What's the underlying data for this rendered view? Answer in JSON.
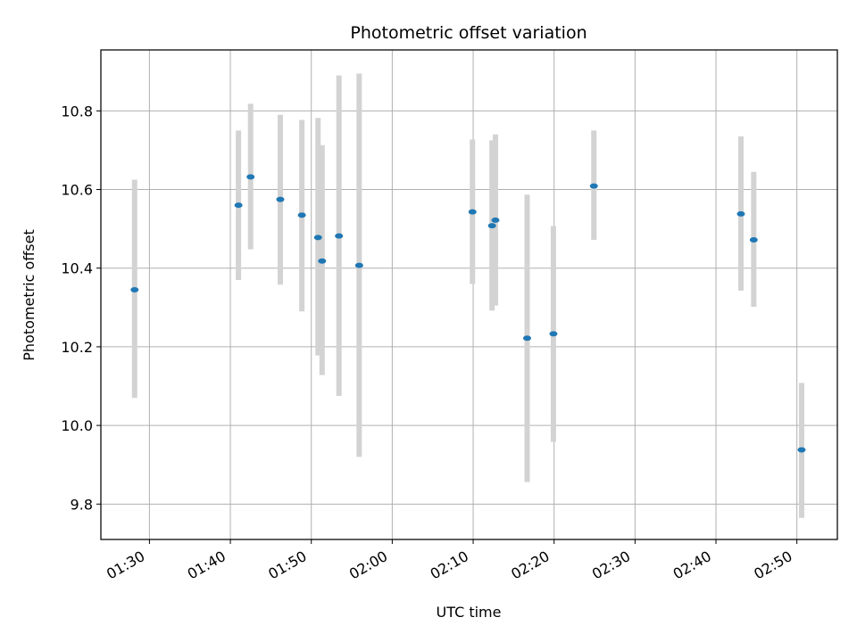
{
  "chart_data": {
    "type": "scatter",
    "title": "Photometric offset variation",
    "xlabel": "UTC time",
    "ylabel": "Photometric offset",
    "xlim": [
      "01:24",
      "02:55"
    ],
    "ylim": [
      9.71,
      10.955
    ],
    "grid": true,
    "x_ticks": [
      "01:30",
      "01:40",
      "01:50",
      "02:00",
      "02:10",
      "02:20",
      "02:30",
      "02:40",
      "02:50"
    ],
    "y_ticks": [
      "9.8",
      "10.0",
      "10.2",
      "10.4",
      "10.6",
      "10.8"
    ],
    "colors": {
      "point": "#1f77b4",
      "errorbar": "#d3d3d3",
      "grid": "#b0b0b0"
    },
    "series": [
      {
        "points": [
          {
            "t": "01:28:10",
            "y": 10.345,
            "lo": 10.07,
            "hi": 10.625
          },
          {
            "t": "01:41:00",
            "y": 10.56,
            "lo": 10.37,
            "hi": 10.75
          },
          {
            "t": "01:42:30",
            "y": 10.632,
            "lo": 10.448,
            "hi": 10.818
          },
          {
            "t": "01:46:10",
            "y": 10.575,
            "lo": 10.358,
            "hi": 10.79
          },
          {
            "t": "01:48:50",
            "y": 10.535,
            "lo": 10.29,
            "hi": 10.777
          },
          {
            "t": "01:50:50",
            "y": 10.478,
            "lo": 10.178,
            "hi": 10.782
          },
          {
            "t": "01:51:20",
            "y": 10.418,
            "lo": 10.128,
            "hi": 10.713
          },
          {
            "t": "01:53:25",
            "y": 10.482,
            "lo": 10.075,
            "hi": 10.89
          },
          {
            "t": "01:55:55",
            "y": 10.407,
            "lo": 9.92,
            "hi": 10.895
          },
          {
            "t": "02:09:55",
            "y": 10.543,
            "lo": 10.36,
            "hi": 10.727
          },
          {
            "t": "02:12:20",
            "y": 10.508,
            "lo": 10.292,
            "hi": 10.725
          },
          {
            "t": "02:12:45",
            "y": 10.522,
            "lo": 10.305,
            "hi": 10.74
          },
          {
            "t": "02:16:40",
            "y": 10.222,
            "lo": 9.856,
            "hi": 10.587
          },
          {
            "t": "02:19:55",
            "y": 10.233,
            "lo": 9.958,
            "hi": 10.507
          },
          {
            "t": "02:24:55",
            "y": 10.609,
            "lo": 10.472,
            "hi": 10.75
          },
          {
            "t": "02:43:05",
            "y": 10.538,
            "lo": 10.343,
            "hi": 10.735
          },
          {
            "t": "02:44:40",
            "y": 10.472,
            "lo": 10.302,
            "hi": 10.645
          },
          {
            "t": "02:50:35",
            "y": 9.938,
            "lo": 9.765,
            "hi": 10.108
          }
        ]
      }
    ]
  }
}
